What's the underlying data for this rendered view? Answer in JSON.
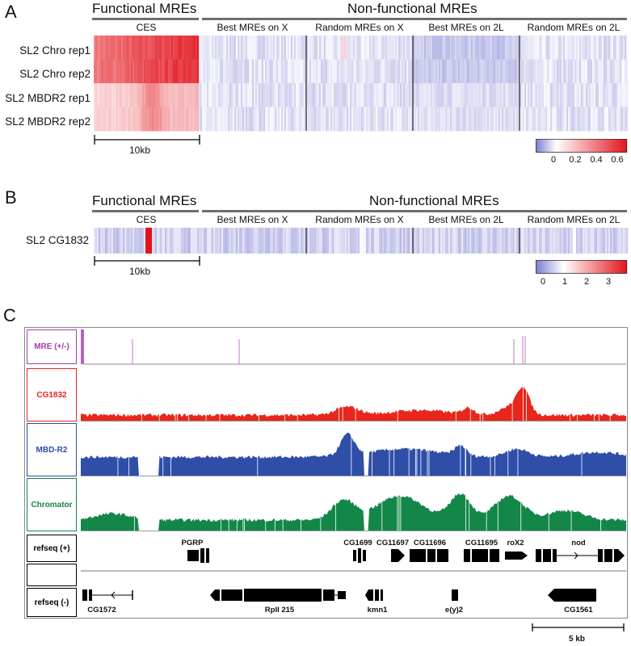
{
  "panel_a": {
    "letter": "A",
    "functional_title": "Functional MREs",
    "nonfunctional_title": "Non-functional MREs",
    "columns": [
      "CES",
      "Best MREs on X",
      "Random MREs on X",
      "Best MREs on 2L",
      "Random MREs on 2L"
    ],
    "rows": [
      "SL2 Chro rep1",
      "SL2 Chro rep2",
      "SL2 MBDR2 rep1",
      "SL2 MBDR2 rep2"
    ],
    "scale_label": "10kb",
    "colorbar": {
      "ticks": [
        "0",
        "0.2",
        "0.4",
        "0.6"
      ],
      "low_color": "#7b7fd1",
      "mid_color": "#ffffff",
      "high_color": "#e3121b"
    }
  },
  "panel_b": {
    "letter": "B",
    "functional_title": "Functional MREs",
    "nonfunctional_title": "Non-functional MREs",
    "columns": [
      "CES",
      "Best MREs on X",
      "Random MREs on X",
      "Best MREs on 2L",
      "Random MREs on 2L"
    ],
    "rows": [
      "SL2 CG1832"
    ],
    "scale_label": "10kb",
    "colorbar": {
      "ticks": [
        "0",
        "1",
        "2",
        "3"
      ],
      "low_color": "#7b7fd1",
      "mid_color": "#ffffff",
      "high_color": "#e3121b"
    }
  },
  "panel_c": {
    "letter": "C",
    "tracks": [
      {
        "label": "MRE (+/-)",
        "color": "#a340a8"
      },
      {
        "label": "CG1832",
        "color": "#e8261c"
      },
      {
        "label": "MBD-R2",
        "color": "#2e4ea8"
      },
      {
        "label": "Chromator",
        "color": "#138748"
      },
      {
        "label": "refseq (+)",
        "color": "#000000"
      },
      {
        "label": "",
        "color": "#000000"
      },
      {
        "label": "refseq (-)",
        "color": "#000000"
      }
    ],
    "genes_plus": [
      "PGRP",
      "CG1699",
      "CG11697",
      "CG11696",
      "CG11695",
      "roX2",
      "nod"
    ],
    "genes_minus": [
      "CG1572",
      "RpII 215",
      "kmn1",
      "e(y)2",
      "CG1561"
    ],
    "scale_label": "5 kb"
  }
}
